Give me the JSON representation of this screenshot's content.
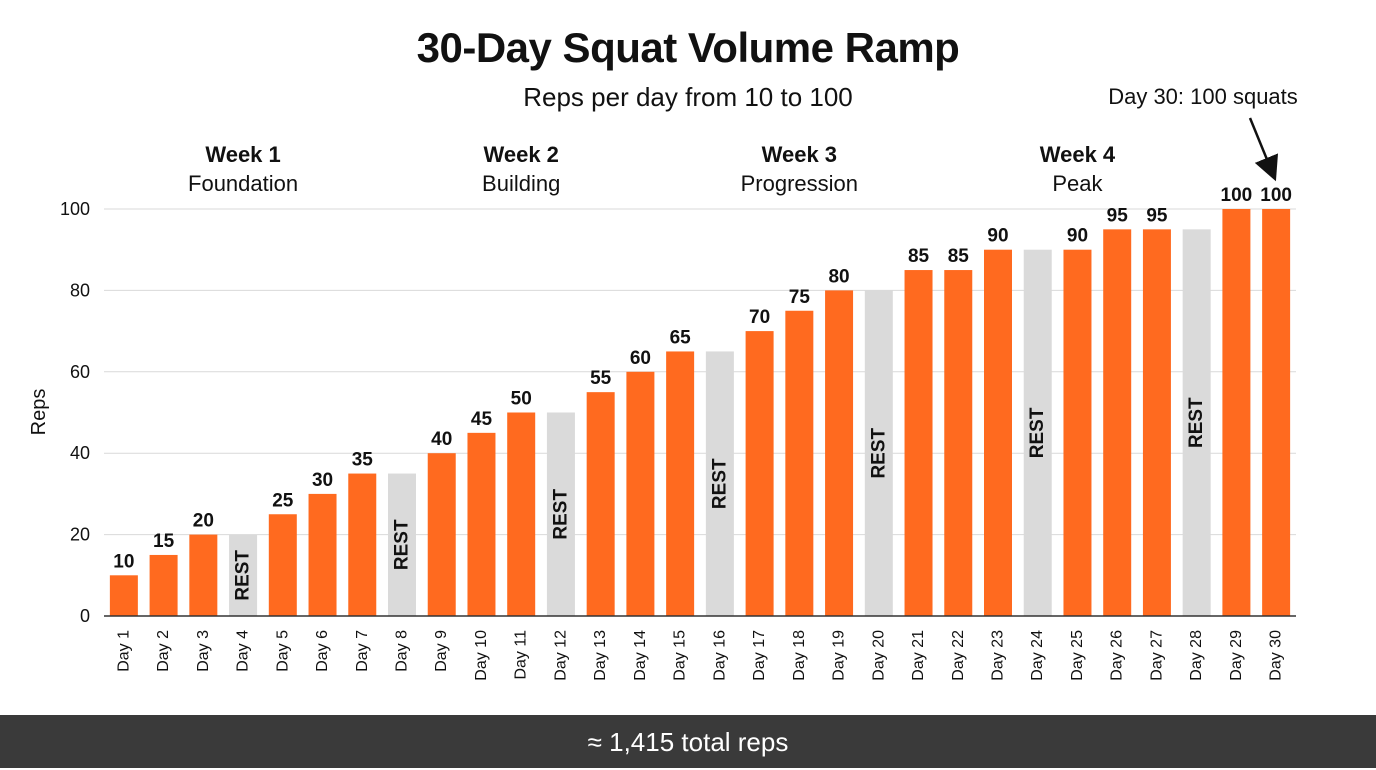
{
  "title": "30-Day Squat Volume Ramp",
  "subtitle": "Reps per day from 10 to 100",
  "footer": "≈ 1,415 total reps",
  "weeks": [
    {
      "heading": "Week 1",
      "name": "Foundation"
    },
    {
      "heading": "Week 2",
      "name": "Building"
    },
    {
      "heading": "Week 3",
      "name": "Progression"
    },
    {
      "heading": "Week 4",
      "name": "Peak"
    }
  ],
  "annotation": "Day 30: 100 squats",
  "colors": {
    "workout": "#ff6a1f",
    "rest": "#dadada",
    "footer_bg": "#3a3a3a"
  },
  "chart_data": {
    "type": "bar",
    "title": "30-Day Squat Volume Ramp",
    "subtitle": "Reps per day from 10 to 100",
    "xlabel": "",
    "ylabel": "Reps",
    "ylim": [
      0,
      100
    ],
    "yticks": [
      0,
      20,
      40,
      60,
      80,
      100
    ],
    "grid": true,
    "rest_label": "REST",
    "categories": [
      "Day 1",
      "Day 2",
      "Day 3",
      "Day 4",
      "Day 5",
      "Day 6",
      "Day 7",
      "Day 8",
      "Day 9",
      "Day 10",
      "Day 11",
      "Day 12",
      "Day 13",
      "Day 14",
      "Day 15",
      "Day 16",
      "Day 17",
      "Day 18",
      "Day 19",
      "Day 20",
      "Day 21",
      "Day 22",
      "Day 23",
      "Day 24",
      "Day 25",
      "Day 26",
      "Day 27",
      "Day 28",
      "Day 29",
      "Day 30"
    ],
    "values": [
      10,
      15,
      20,
      20,
      25,
      30,
      35,
      35,
      40,
      45,
      50,
      50,
      55,
      60,
      65,
      65,
      70,
      75,
      80,
      80,
      85,
      85,
      90,
      90,
      90,
      95,
      95,
      95,
      100,
      100
    ],
    "rest_days": [
      "Day 4",
      "Day 8",
      "Day 12",
      "Day 16",
      "Day 20",
      "Day 24",
      "Day 28"
    ]
  }
}
